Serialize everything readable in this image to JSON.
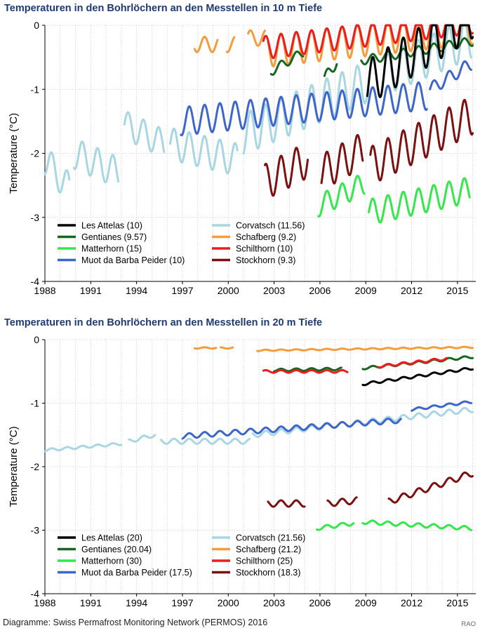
{
  "footer": {
    "credit": "Diagramme:  Swiss Permafrost Monitoring Network (PERMOS) 2016",
    "initials": "RAO"
  },
  "chart_data": [
    {
      "type": "line",
      "title": "Temperaturen in den Bohrlöchern an den Messtellen in 10 m Tiefe",
      "xlabel": "",
      "ylabel": "Temperature (°C)",
      "xlim": [
        1988,
        2016.2
      ],
      "ylim": [
        -4,
        0
      ],
      "xticks": [
        "1988",
        "1991",
        "1994",
        "1997",
        "2000",
        "2003",
        "2006",
        "2009",
        "2012",
        "2015"
      ],
      "yticks": [
        "0",
        "-1",
        "-2",
        "-3",
        "-4"
      ],
      "grid": true,
      "legend_position": "bottom-left",
      "series": [
        {
          "name": "Les Attelas (10)",
          "color": "#000000",
          "segments": [
            [
              2009.1,
              2016.0,
              -0.9,
              0.35,
              1.05
            ]
          ]
        },
        {
          "name": "Gentianes (9.57)",
          "color": "#17661f",
          "segments": [
            [
              2002.8,
              2004.9,
              -0.72,
              0.07,
              0.3
            ],
            [
              2006.3,
              2007.1,
              -0.85,
              0.1,
              0.3
            ],
            [
              2008.7,
              2016.0,
              -0.55,
              0.07,
              0.3
            ]
          ]
        },
        {
          "name": "Matterhorn (15)",
          "color": "#33e84a",
          "segments": [
            [
              2005.9,
              2008.9,
              -2.82,
              0.17,
              0.35
            ],
            [
              2009.2,
              2015.8,
              -2.92,
              0.2,
              0.35
            ]
          ]
        },
        {
          "name": "Muot da Barba Peider (10)",
          "color": "#3d66cc",
          "segments": [
            [
              1996.9,
              2013.0,
              -1.5,
              0.22,
              0.4
            ],
            [
              2013.2,
              2015.9,
              -1.0,
              0.1,
              0.4
            ]
          ]
        },
        {
          "name": "Corvatsch (11.56)",
          "color": "#a8d6e3",
          "segments": [
            [
              1988.0,
              1989.6,
              -2.1,
              0.24,
              -0.45
            ],
            [
              1989.9,
              1992.8,
              -2.0,
              0.24,
              -0.3
            ],
            [
              1993.2,
              1995.8,
              -1.55,
              0.22,
              -0.3
            ],
            [
              1996.2,
              2000.6,
              -1.85,
              0.25,
              -0.25
            ],
            [
              2001.0,
              2015.9,
              -1.7,
              0.32,
              1.5
            ]
          ]
        },
        {
          "name": "Schafberg (9.2)",
          "color": "#f59c3d",
          "segments": [
            [
              1997.8,
              1999.3,
              -0.3,
              0.12,
              0.0
            ],
            [
              1999.9,
              2000.4,
              -0.3,
              0.12,
              0.0
            ],
            [
              2001.3,
              2002.4,
              -0.2,
              0.12,
              0.0
            ],
            [
              2002.6,
              2016.0,
              -0.4,
              0.25,
              0.35
            ]
          ]
        },
        {
          "name": "Schilthorn (10)",
          "color": "#ee1c1c",
          "segments": [
            [
              2002.3,
              2016.0,
              -0.35,
              0.18,
              0.4
            ]
          ]
        },
        {
          "name": "Stockhorn (9.3)",
          "color": "#7c1010",
          "segments": [
            [
              2002.4,
              2005.2,
              -2.45,
              0.28,
              0.35
            ],
            [
              2006.1,
              2008.8,
              -2.3,
              0.28,
              0.35
            ],
            [
              2009.3,
              2016.0,
              -2.2,
              0.3,
              0.8
            ]
          ]
        }
      ]
    },
    {
      "type": "line",
      "title": "Temperaturen in den Bohrlöchern an den Messtellen in 20 m Tiefe",
      "xlabel": "",
      "ylabel": "Temperature (°C)",
      "xlim": [
        1988,
        2016.2
      ],
      "ylim": [
        -4,
        0
      ],
      "xticks": [
        "1988",
        "1991",
        "1994",
        "1997",
        "2000",
        "2003",
        "2006",
        "2009",
        "2012",
        "2015"
      ],
      "yticks": [
        "0",
        "-1",
        "-2",
        "-3",
        "-4"
      ],
      "grid": true,
      "legend_position": "bottom-left",
      "series": [
        {
          "name": "Les Attelas (20)",
          "color": "#000000",
          "segments": [
            [
              2008.8,
              2016.0,
              -0.7,
              0.02,
              0.25
            ]
          ]
        },
        {
          "name": "Gentianes (20.04)",
          "color": "#17661f",
          "segments": [
            [
              2003.0,
              2007.4,
              -0.48,
              0.02,
              0.02
            ],
            [
              2008.8,
              2016.0,
              -0.45,
              0.02,
              0.18
            ]
          ]
        },
        {
          "name": "Matterhorn (30)",
          "color": "#33e84a",
          "segments": [
            [
              2005.8,
              2008.2,
              -2.97,
              0.03,
              0.08
            ],
            [
              2008.8,
              2015.9,
              -2.87,
              0.03,
              -0.1
            ]
          ]
        },
        {
          "name": "Muot da Barba Peider (17.5)",
          "color": "#3d66cc",
          "segments": [
            [
              1997.0,
              2011.3,
              -1.52,
              0.04,
              0.25
            ],
            [
              2012.0,
              2015.9,
              -1.1,
              0.02,
              0.12
            ]
          ]
        },
        {
          "name": "Corvatsch (21.56)",
          "color": "#a8d6e3",
          "segments": [
            [
              1988.0,
              1993.0,
              -1.74,
              0.02,
              0.1
            ],
            [
              1993.5,
              1995.2,
              -1.6,
              0.03,
              0.1
            ],
            [
              1995.6,
              2001.4,
              -1.6,
              0.04,
              0.0
            ],
            [
              2001.6,
              2016.0,
              -1.5,
              0.04,
              0.4
            ]
          ]
        },
        {
          "name": "Schafberg (21.2)",
          "color": "#f59c3d",
          "segments": [
            [
              1997.8,
              1999.2,
              -0.13,
              0.01,
              0.0
            ],
            [
              1999.5,
              2000.3,
              -0.13,
              0.01,
              0.0
            ],
            [
              2001.9,
              2016.0,
              -0.17,
              0.01,
              0.05
            ]
          ]
        },
        {
          "name": "Schilthorn (25)",
          "color": "#ee1c1c",
          "segments": [
            [
              2002.3,
              2007.8,
              -0.5,
              0.02,
              0.0
            ],
            [
              2009.8,
              2014.3,
              -0.42,
              0.02,
              0.12
            ]
          ]
        },
        {
          "name": "Stockhorn (18.3)",
          "color": "#7c1010",
          "segments": [
            [
              2002.6,
              2005.0,
              -2.58,
              0.05,
              0.0
            ],
            [
              2006.5,
              2008.4,
              -2.58,
              0.05,
              0.05
            ],
            [
              2010.5,
              2016.0,
              -2.55,
              0.05,
              0.45
            ]
          ]
        }
      ]
    }
  ]
}
